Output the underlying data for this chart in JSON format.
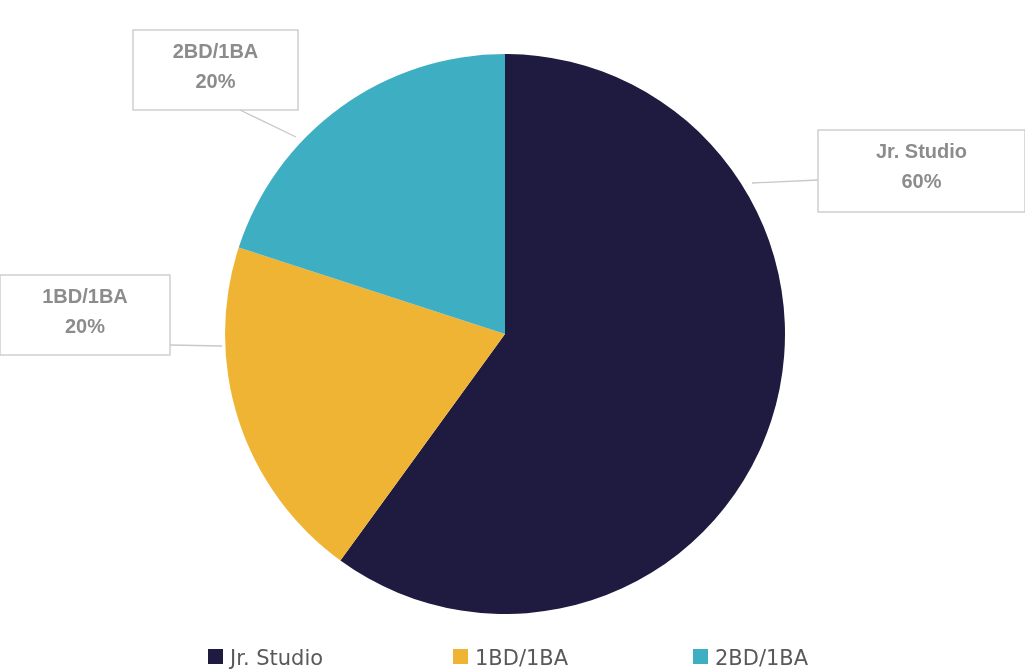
{
  "chart_data": {
    "type": "pie",
    "categories": [
      "Jr. Studio",
      "1BD/1BA",
      "2BD/1BA"
    ],
    "values": [
      60,
      20,
      20
    ],
    "colors": [
      "#1e1a40",
      "#f0b434",
      "#3eaec3"
    ],
    "value_labels": [
      "60%",
      "20%",
      "20%"
    ],
    "legend": "bottom"
  }
}
